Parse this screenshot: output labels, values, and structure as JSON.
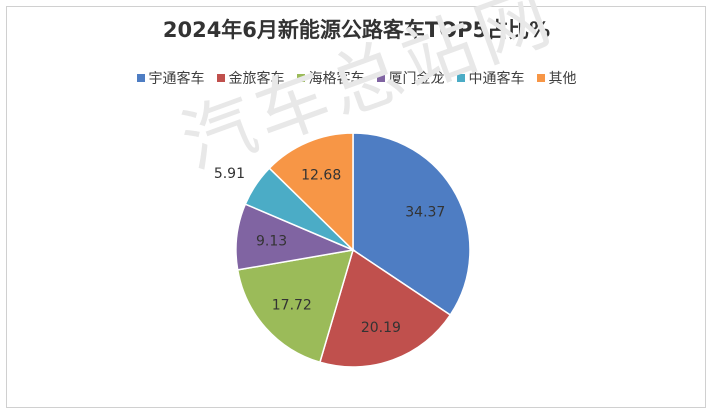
{
  "chart_data": {
    "type": "pie",
    "title": "2024年6月新能源公路客车TOP5占比%",
    "categories": [
      "宇通客车",
      "金旅客车",
      "海格客车",
      "厦门金龙",
      "中通客车",
      "其他"
    ],
    "values": [
      34.37,
      20.19,
      17.72,
      9.13,
      5.91,
      12.68
    ],
    "value_labels": [
      "34.37",
      "20.19",
      "17.72",
      "9.13",
      "5.91",
      "12.68"
    ],
    "colors": [
      "#4E7DC3",
      "#C0504D",
      "#9BBB59",
      "#8064A2",
      "#4BACC6",
      "#F79646"
    ],
    "legend_position": "top",
    "start_angle_deg": 0,
    "direction": "clockwise"
  },
  "watermark": "汽车总站网"
}
